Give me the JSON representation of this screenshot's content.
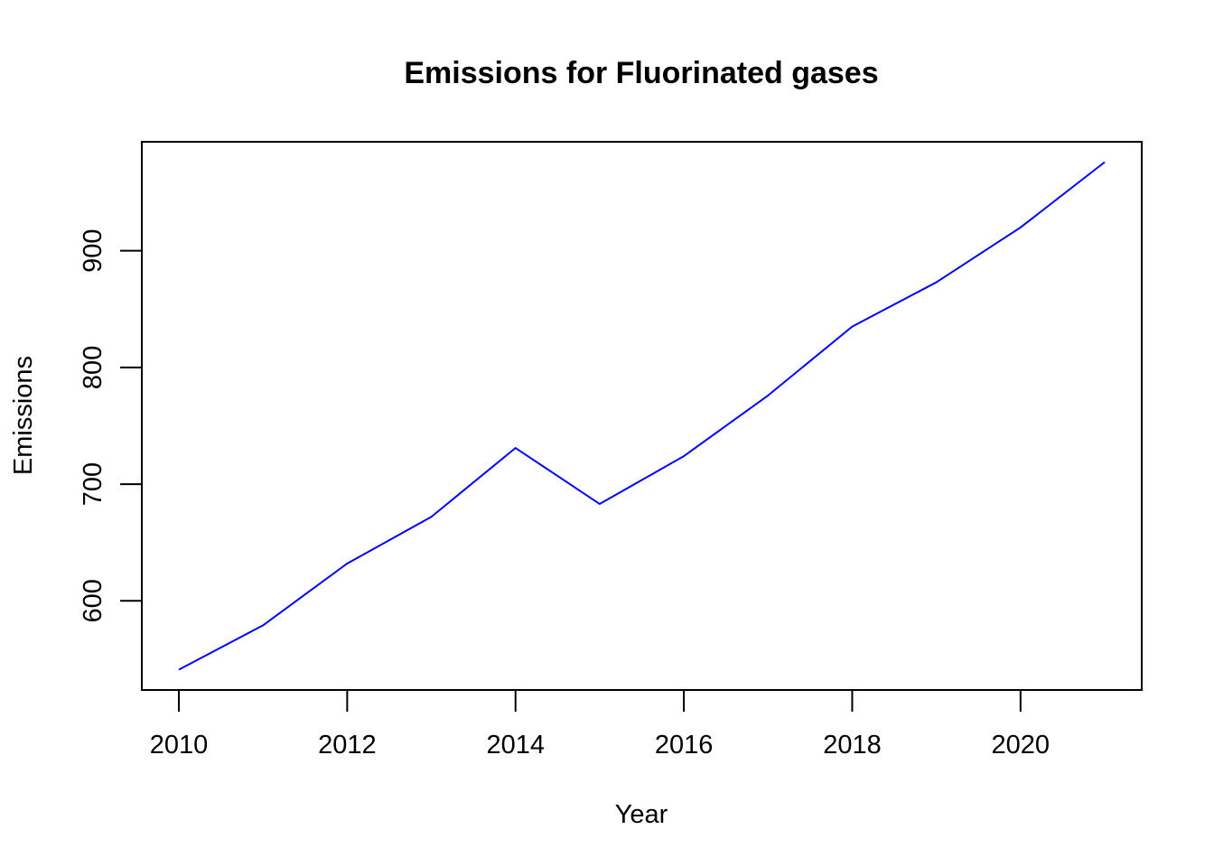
{
  "chart_data": {
    "type": "line",
    "title": "Emissions for Fluorinated gases",
    "xlabel": "Year",
    "ylabel": "Emissions",
    "x": [
      2010,
      2011,
      2012,
      2013,
      2014,
      2015,
      2016,
      2017,
      2018,
      2019,
      2020,
      2021
    ],
    "series": [
      {
        "values": [
          541,
          579,
          632,
          672,
          731,
          683,
          724,
          776,
          835,
          873,
          920,
          976
        ],
        "color": "#0000ff"
      }
    ],
    "x_ticks": [
      2010,
      2012,
      2014,
      2016,
      2018,
      2020
    ],
    "y_ticks": [
      600,
      700,
      800,
      900
    ],
    "xlim": [
      2009.56,
      2021.44
    ],
    "ylim": [
      523.6,
      993.4
    ],
    "grid": false,
    "legend": "none"
  }
}
